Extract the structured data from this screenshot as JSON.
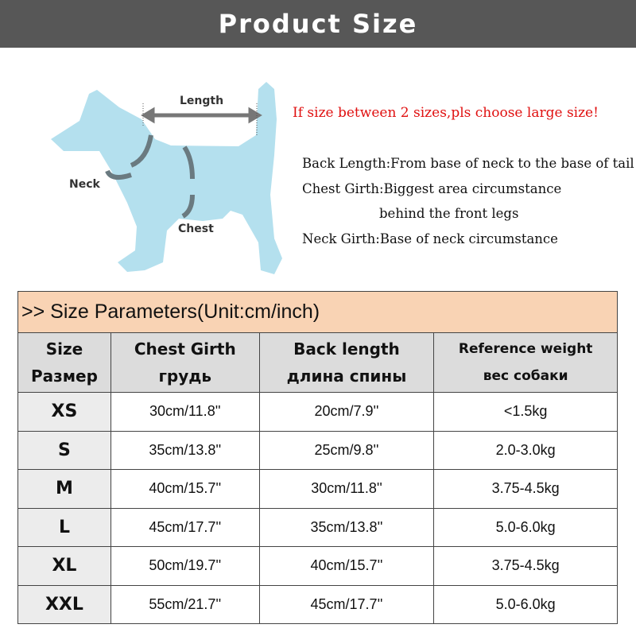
{
  "title": "Product Size",
  "diagram": {
    "length": "Length",
    "neck": "Neck",
    "chest": "Chest"
  },
  "note": "If size between 2 sizes,pls choose large size!",
  "descriptions": [
    "Back Length:From base of neck to the base of tail",
    "Chest Girth:Biggest area circumstance",
    "behind the front legs",
    "Neck Girth:Base of neck circumstance"
  ],
  "table": {
    "caption": ">> Size Parameters(Unit:cm/inch)",
    "headers": [
      [
        "Size",
        "Размер"
      ],
      [
        "Chest Girth",
        "грудь"
      ],
      [
        "Back length",
        "длина спины"
      ],
      [
        "Reference weight",
        "вес собаки"
      ]
    ],
    "rows": [
      [
        "XS",
        "30cm/11.8''",
        "20cm/7.9''",
        "<1.5kg"
      ],
      [
        "S",
        "35cm/13.8''",
        "25cm/9.8''",
        "2.0-3.0kg"
      ],
      [
        "M",
        "40cm/15.7''",
        "30cm/11.8''",
        "3.75-4.5kg"
      ],
      [
        "L",
        "45cm/17.7''",
        "35cm/13.8''",
        "5.0-6.0kg"
      ],
      [
        "XL",
        "50cm/19.7''",
        "40cm/15.7''",
        "3.75-4.5kg"
      ],
      [
        "XXL",
        "55cm/21.7''",
        "45cm/17.7''",
        "5.0-6.0kg"
      ]
    ]
  },
  "colors": {
    "title_bg": "#575757",
    "caption_bg": "#f9d3b4",
    "header_bg": "#dcdcdc",
    "dog": "#b4e0ee",
    "note": "#e01010"
  }
}
